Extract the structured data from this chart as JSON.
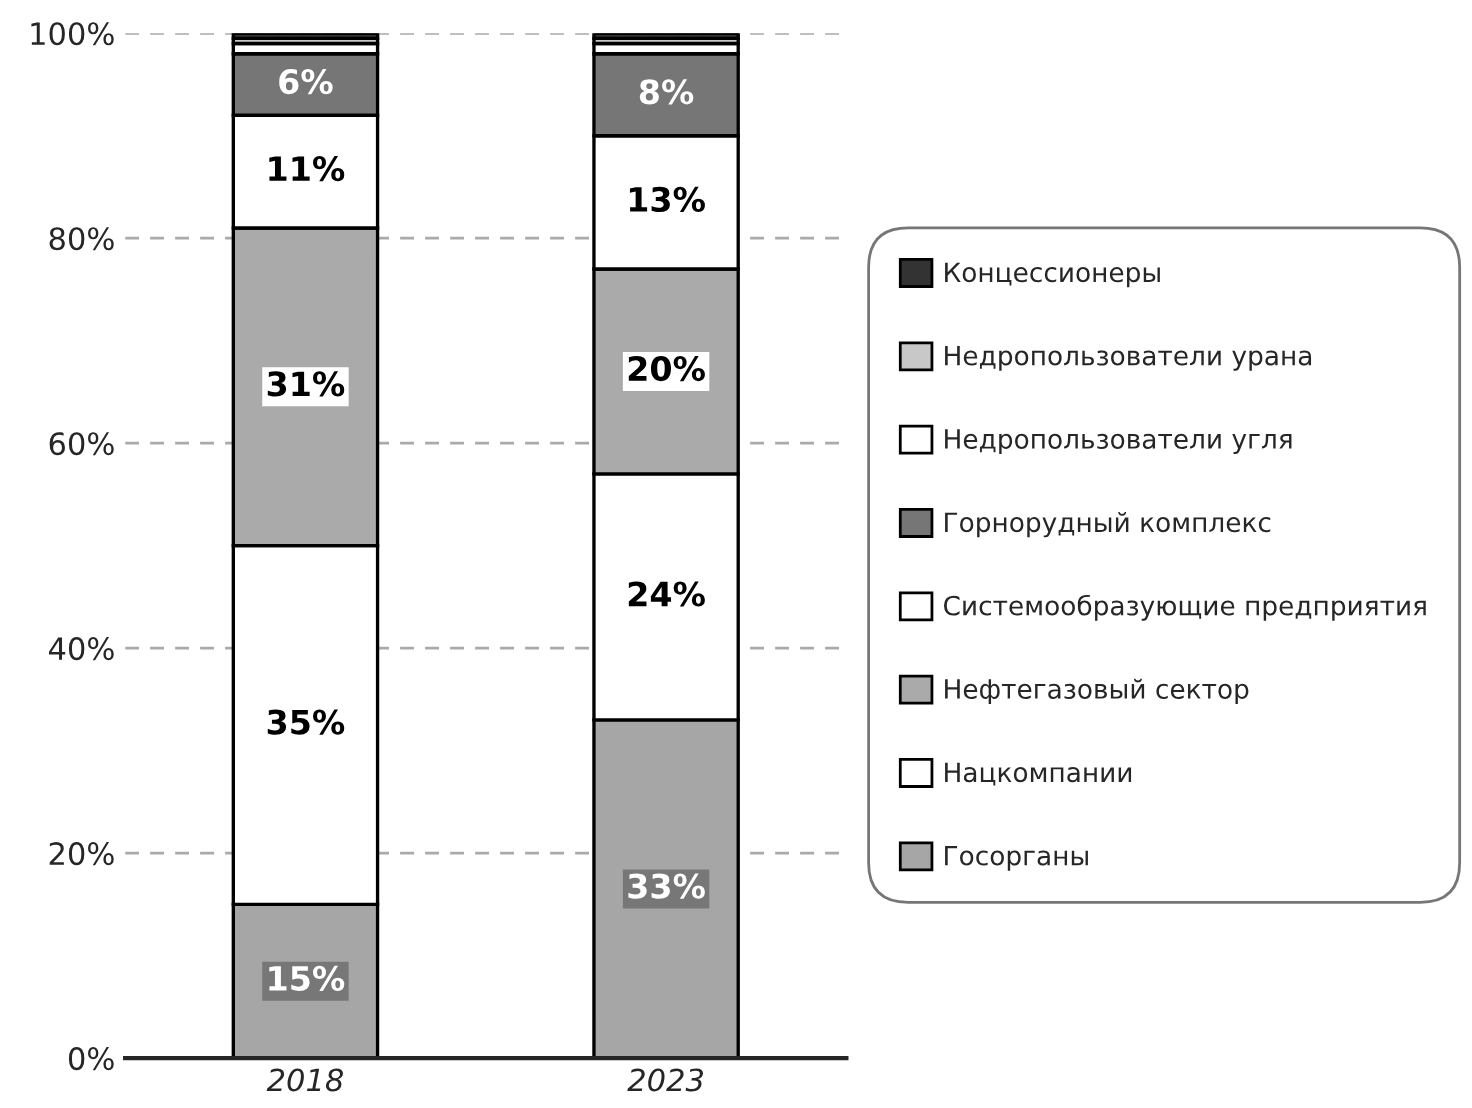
{
  "chart_data": {
    "type": "bar",
    "stacked": true,
    "categories": [
      "2018",
      "2023"
    ],
    "series": [
      {
        "name": "Госорганы",
        "color": "#a6a6a6",
        "values": [
          15,
          33
        ],
        "value_labels": [
          "15%",
          "33%"
        ]
      },
      {
        "name": "Нацкомпании",
        "color": "#ffffff",
        "values": [
          35,
          24
        ],
        "value_labels": [
          "35%",
          "24%"
        ]
      },
      {
        "name": "Нефтегазовый сектор",
        "color": "#aaaaaa",
        "values": [
          31,
          20
        ],
        "value_labels": [
          "31%",
          "20%"
        ]
      },
      {
        "name": "Системообразующие предприятия",
        "color": "#ffffff",
        "values": [
          11,
          13
        ],
        "value_labels": [
          "11%",
          "13%"
        ]
      },
      {
        "name": "Горнорудный комплекс",
        "color": "#767676",
        "values": [
          6,
          8
        ],
        "value_labels": [
          "6%",
          "8%"
        ]
      },
      {
        "name": "Недропользователи угля",
        "color": "#ffffff",
        "values": [
          1,
          1
        ]
      },
      {
        "name": "Недропользователи урана",
        "color": "#c8c8c8",
        "values": [
          0.5,
          0.5
        ]
      },
      {
        "name": "Концессионеры",
        "color": "#333333",
        "values": [
          0.5,
          0.5
        ]
      }
    ],
    "ylim": [
      0,
      100
    ],
    "yticks": [
      {
        "value": 0,
        "label": "0%"
      },
      {
        "value": 20,
        "label": "20%"
      },
      {
        "value": 40,
        "label": "40%"
      },
      {
        "value": 60,
        "label": "60%"
      },
      {
        "value": 80,
        "label": "80%"
      },
      {
        "value": 100,
        "label": "100%"
      }
    ],
    "grid": "y",
    "legend": "right"
  }
}
